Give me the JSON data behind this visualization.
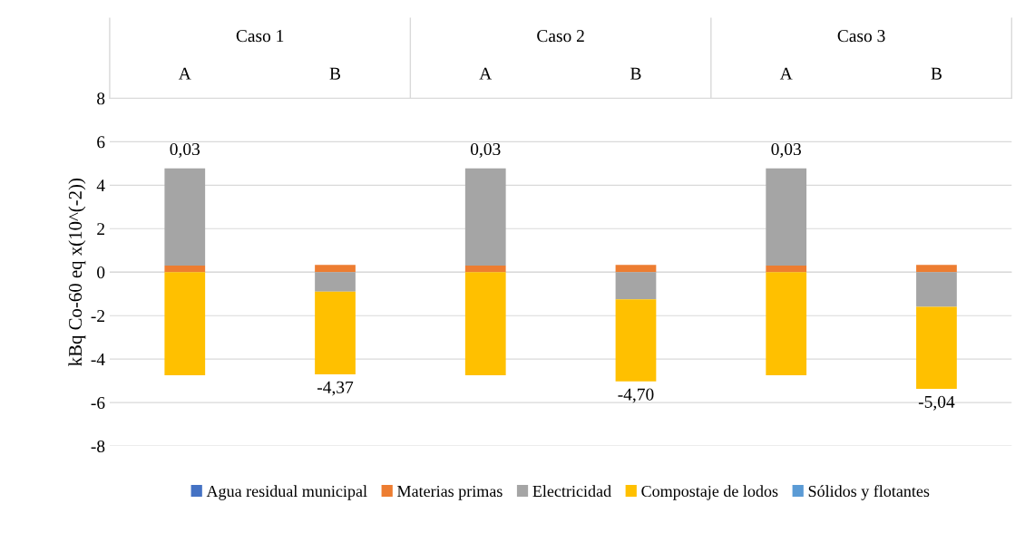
{
  "chart_data": {
    "type": "bar",
    "stacked": true,
    "ylabel": "kBq Co-60 eq x(10^(-2))",
    "categories": [
      "A",
      "B",
      "A",
      "B",
      "A",
      "B"
    ],
    "annotations": [
      "Caso 1",
      "Caso 2",
      "Caso 3"
    ],
    "series": [
      {
        "name": "Agua residual municipal",
        "color": "#4472c4",
        "values": [
          0,
          0,
          0,
          0,
          0,
          0
        ]
      },
      {
        "name": "Materias primas",
        "color": "#ed7d31",
        "values": [
          0.3,
          0.33,
          0.3,
          0.33,
          0.3,
          0.33
        ]
      },
      {
        "name": "Electricidad",
        "color": "#a5a5a5",
        "values": [
          4.47,
          -0.9,
          4.47,
          -1.25,
          4.47,
          -1.6
        ]
      },
      {
        "name": "Compostaje de lodos",
        "color": "#ffc000",
        "values": [
          -4.74,
          -3.8,
          -4.74,
          -3.78,
          -4.74,
          -3.77
        ]
      },
      {
        "name": "Sólidos y flotantes",
        "color": "#5b9bd5",
        "values": [
          0,
          0,
          0,
          0,
          0,
          0
        ]
      }
    ],
    "totals": [
      "0,03",
      "-4,37",
      "0,03",
      "-4,70",
      "0,03",
      "-5,04"
    ],
    "ylim": [
      -8,
      8
    ],
    "yticks": [
      -8,
      -6,
      -4,
      -2,
      0,
      2,
      4,
      6,
      8
    ],
    "grid": "y",
    "legend": "bottom"
  }
}
